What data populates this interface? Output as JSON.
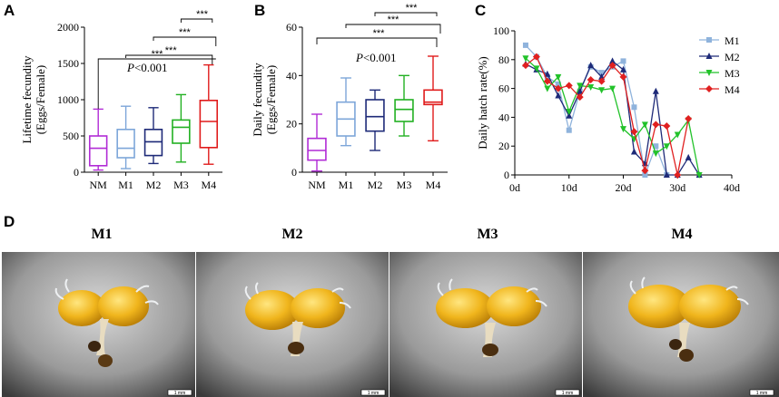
{
  "chart_data": [
    {
      "panel": "A",
      "type": "box",
      "ylabel_lines": [
        "Lifetime fecundity",
        "(Eggs/Female)"
      ],
      "ylim": [
        0,
        2000
      ],
      "yticks": [
        0,
        500,
        1000,
        1500,
        2000
      ],
      "categories": [
        "NM",
        "M1",
        "M2",
        "M3",
        "M4"
      ],
      "colors": [
        "#b12bd6",
        "#7da6d9",
        "#1e2a78",
        "#22b022",
        "#e01b1b"
      ],
      "boxes": [
        {
          "min": 30,
          "q1": 90,
          "median": 330,
          "q3": 500,
          "max": 870
        },
        {
          "min": 50,
          "q1": 200,
          "median": 330,
          "q3": 590,
          "max": 910
        },
        {
          "min": 120,
          "q1": 230,
          "median": 420,
          "q3": 590,
          "max": 890
        },
        {
          "min": 140,
          "q1": 400,
          "median": 620,
          "q3": 720,
          "max": 1070
        },
        {
          "min": 110,
          "q1": 340,
          "median": 700,
          "q3": 990,
          "max": 1480
        }
      ],
      "sig_label": "***",
      "p_label_prefix": "P",
      "p_label_rest": "<0.001"
    },
    {
      "panel": "B",
      "type": "box",
      "ylabel_lines": [
        "Daily fecundity",
        "(Eggs/Female)"
      ],
      "ylim": [
        0,
        60
      ],
      "yticks": [
        0,
        20,
        40,
        60
      ],
      "categories": [
        "NM",
        "M1",
        "M2",
        "M3",
        "M4"
      ],
      "colors": [
        "#b12bd6",
        "#7da6d9",
        "#1e2a78",
        "#22b022",
        "#e01b1b"
      ],
      "boxes": [
        {
          "min": 0.5,
          "q1": 5,
          "median": 9,
          "q3": 14,
          "max": 24
        },
        {
          "min": 11,
          "q1": 15,
          "median": 22,
          "q3": 29,
          "max": 39
        },
        {
          "min": 9,
          "q1": 17,
          "median": 23,
          "q3": 30,
          "max": 34
        },
        {
          "min": 15,
          "q1": 21,
          "median": 26,
          "q3": 30,
          "max": 40
        },
        {
          "min": 13,
          "q1": 28,
          "median": 29,
          "q3": 34,
          "max": 48
        }
      ],
      "sig_label": "***",
      "p_label_prefix": "P",
      "p_label_rest": "<0.001"
    },
    {
      "panel": "C",
      "type": "line",
      "ylabel": "Daily hatch rate(%)",
      "xlim": [
        0,
        40
      ],
      "ylim": [
        0,
        100
      ],
      "xticks": [
        0,
        10,
        20,
        30,
        40
      ],
      "xtick_labels": [
        "0d",
        "10d",
        "20d",
        "30d",
        "40d"
      ],
      "yticks": [
        0,
        20,
        40,
        60,
        80,
        100
      ],
      "series": [
        {
          "name": "M1",
          "color": "#8fb3dc",
          "marker": "square",
          "x": [
            2,
            4,
            6,
            8,
            10,
            12,
            14,
            16,
            18,
            20,
            22,
            24,
            26,
            28
          ],
          "y": [
            90,
            82,
            68,
            63,
            31,
            58,
            75,
            71,
            75,
            79,
            47,
            0,
            20,
            0
          ]
        },
        {
          "name": "M2",
          "color": "#1e2a78",
          "marker": "triangle-up",
          "x": [
            2,
            4,
            6,
            8,
            10,
            12,
            14,
            16,
            18,
            20,
            22,
            24,
            26,
            28,
            30,
            32,
            34
          ],
          "y": [
            77,
            73,
            70,
            55,
            41,
            58,
            76,
            68,
            79,
            73,
            16,
            8,
            58,
            0,
            0,
            12,
            0
          ]
        },
        {
          "name": "M3",
          "color": "#22c22a",
          "marker": "triangle-down",
          "x": [
            2,
            4,
            6,
            8,
            10,
            12,
            14,
            16,
            18,
            20,
            22,
            24,
            26,
            28,
            30,
            32,
            34
          ],
          "y": [
            81,
            74,
            60,
            68,
            44,
            62,
            61,
            59,
            60,
            32,
            25,
            35,
            15,
            20,
            28,
            38,
            0
          ]
        },
        {
          "name": "M4",
          "color": "#e02020",
          "marker": "diamond",
          "x": [
            2,
            4,
            6,
            8,
            10,
            12,
            14,
            16,
            18,
            20,
            22,
            24,
            26,
            28,
            30,
            32
          ],
          "y": [
            76,
            82,
            65,
            60,
            62,
            54,
            66,
            65,
            76,
            68,
            30,
            3,
            35,
            34,
            0,
            39
          ]
        }
      ]
    }
  ],
  "panel_labels": {
    "a": "A",
    "b": "B",
    "c": "C",
    "d": "D"
  },
  "photos": {
    "titles": [
      "M1",
      "M2",
      "M3",
      "M4"
    ],
    "scale_bar_label": "1 mm"
  }
}
